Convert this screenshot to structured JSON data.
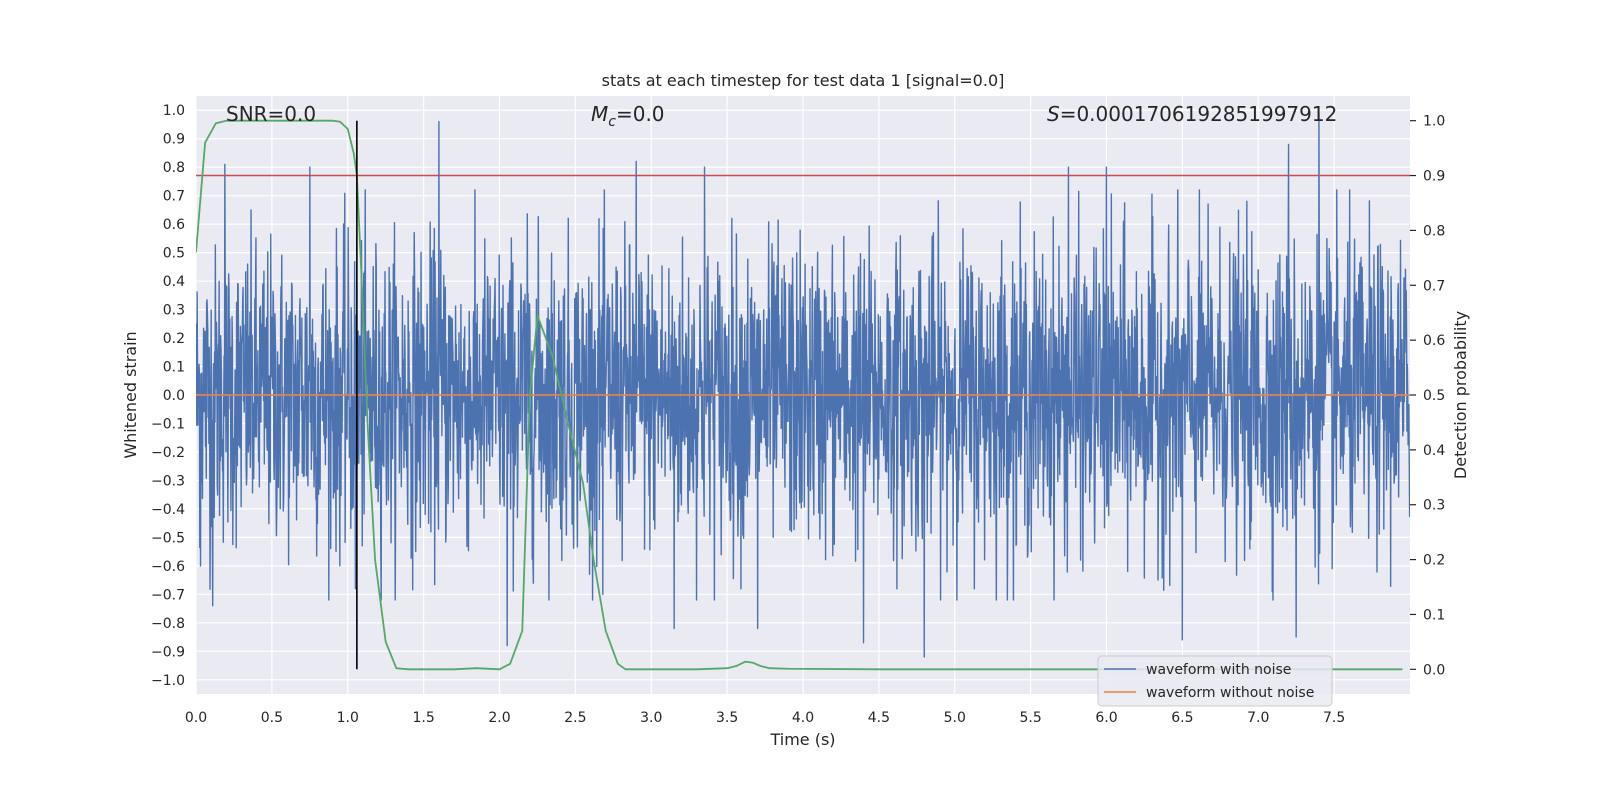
{
  "chart_data": {
    "type": "line",
    "title": "stats at each timestep for test data 1 [signal=0.0]",
    "xlabel": "Time (s)",
    "ylabel": "Whitened strain",
    "y2label": "Detection probability",
    "xlim": [
      0.0,
      8.0
    ],
    "ylim": [
      -1.05,
      1.05
    ],
    "y2lim": [
      -0.045,
      1.045
    ],
    "x_ticks": [
      0.0,
      0.5,
      1.0,
      1.5,
      2.0,
      2.5,
      3.0,
      3.5,
      4.0,
      4.5,
      5.0,
      5.5,
      6.0,
      6.5,
      7.0,
      7.5
    ],
    "x_tick_labels": [
      "0.0",
      "0.5",
      "1.0",
      "1.5",
      "2.0",
      "2.5",
      "3.0",
      "3.5",
      "4.0",
      "4.5",
      "5.0",
      "5.5",
      "6.0",
      "6.5",
      "7.0",
      "7.5"
    ],
    "y_ticks": [
      1.0,
      0.9,
      0.8,
      0.7,
      0.6,
      0.5,
      0.4,
      0.3,
      0.2,
      0.1,
      0.0,
      -0.1,
      -0.2,
      -0.3,
      -0.4,
      -0.5,
      -0.6,
      -0.7,
      -0.8,
      -0.9,
      -1.0
    ],
    "y_tick_labels": [
      "1.0",
      "0.9",
      "0.8",
      "0.7",
      "0.6",
      "0.5",
      "0.4",
      "0.3",
      "0.2",
      "0.1",
      "0.0",
      "−0.1",
      "−0.2",
      "−0.3",
      "−0.4",
      "−0.5",
      "−0.6",
      "−0.7",
      "−0.8",
      "−0.9",
      "−1.0"
    ],
    "y2_ticks": [
      1.0,
      0.9,
      0.8,
      0.7,
      0.6,
      0.5,
      0.4,
      0.3,
      0.2,
      0.1,
      0.0
    ],
    "y2_tick_labels": [
      "1.0",
      "0.9",
      "0.8",
      "0.7",
      "0.6",
      "0.5",
      "0.4",
      "0.3",
      "0.2",
      "0.1",
      "0.0"
    ],
    "grid": true,
    "annotations": {
      "snr": "SNR=0.0",
      "mc_symbol": "M",
      "mc_subscript": "c",
      "mc_value": "=0.0",
      "s_symbol": "S",
      "s_value": "=0.0001706192851997912"
    },
    "threshold": {
      "axis": "y2",
      "value": 0.9,
      "color": "#c44e52"
    },
    "marker_line": {
      "x": 1.06,
      "y2_from": 0.0,
      "y2_to": 1.0,
      "color": "#000000"
    },
    "series": [
      {
        "name": "waveform with noise",
        "axis": "y",
        "color": "#4c72b0",
        "kind": "noise",
        "x_range": [
          0.0,
          8.0
        ],
        "typical_amplitude": 0.45,
        "peaks": [
          {
            "x": 0.19,
            "y": 0.81
          },
          {
            "x": 1.6,
            "y": 0.96
          },
          {
            "x": 2.9,
            "y": 0.82
          },
          {
            "x": 3.35,
            "y": 0.8
          },
          {
            "x": 7.2,
            "y": 0.88
          },
          {
            "x": 7.4,
            "y": 0.99
          },
          {
            "x": 5.75,
            "y": 0.8
          },
          {
            "x": 6.0,
            "y": 0.8
          },
          {
            "x": 0.75,
            "y": 0.8
          },
          {
            "x": 0.03,
            "y": -0.6
          },
          {
            "x": 0.11,
            "y": -0.74
          },
          {
            "x": 1.05,
            "y": -0.68
          },
          {
            "x": 2.05,
            "y": -0.88
          },
          {
            "x": 3.7,
            "y": -0.82
          },
          {
            "x": 4.4,
            "y": -0.87
          },
          {
            "x": 4.8,
            "y": -0.92
          },
          {
            "x": 6.5,
            "y": -0.86
          },
          {
            "x": 7.25,
            "y": -0.85
          },
          {
            "x": 2.68,
            "y": -0.7
          },
          {
            "x": 3.15,
            "y": -0.82
          }
        ]
      },
      {
        "name": "waveform without noise",
        "axis": "y",
        "color": "#dd8452",
        "x": [
          0.0,
          8.0
        ],
        "y": [
          0.0,
          0.0
        ]
      },
      {
        "name": "detection probability",
        "axis": "y2",
        "color": "#55a868",
        "x": [
          0.0,
          0.06,
          0.13,
          0.2,
          0.3,
          0.5,
          0.7,
          0.9,
          0.95,
          1.0,
          1.04,
          1.06,
          1.09,
          1.13,
          1.18,
          1.25,
          1.32,
          1.4,
          1.55,
          1.7,
          1.85,
          2.0,
          2.07,
          2.15,
          2.2,
          2.25,
          2.35,
          2.45,
          2.55,
          2.62,
          2.7,
          2.78,
          2.83,
          3.0,
          3.3,
          3.5,
          3.56,
          3.62,
          3.67,
          3.72,
          3.78,
          3.9,
          4.5,
          5.5,
          6.5,
          7.0,
          7.5,
          7.95
        ],
        "y": [
          0.76,
          0.96,
          0.995,
          1.0,
          1.0,
          1.0,
          1.0,
          1.0,
          0.998,
          0.985,
          0.94,
          0.9,
          0.72,
          0.45,
          0.2,
          0.05,
          0.002,
          0.0,
          0.0,
          0.0,
          0.002,
          0.0,
          0.01,
          0.07,
          0.5,
          0.645,
          0.57,
          0.45,
          0.34,
          0.2,
          0.07,
          0.01,
          0.0,
          0.0,
          0.0,
          0.002,
          0.006,
          0.014,
          0.012,
          0.006,
          0.002,
          0.001,
          0.0,
          0.0,
          0.0,
          0.0,
          0.0,
          0.0
        ]
      }
    ],
    "legend": {
      "placement": "lower-right",
      "entries": [
        {
          "label": "waveform with noise",
          "color": "#4c72b0"
        },
        {
          "label": "waveform without noise",
          "color": "#dd8452"
        }
      ]
    }
  }
}
